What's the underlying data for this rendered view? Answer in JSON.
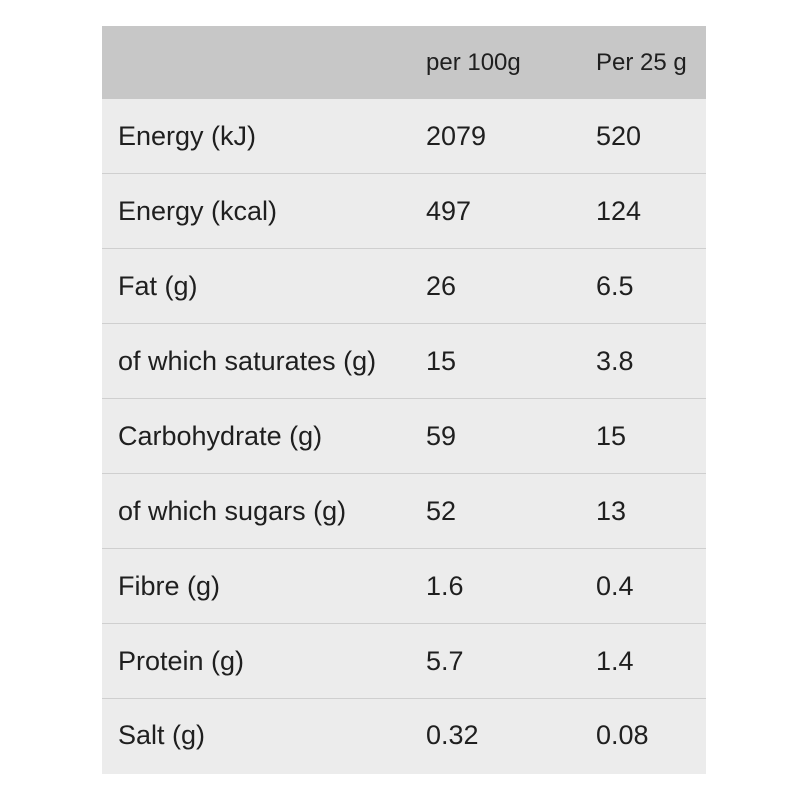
{
  "table": {
    "header": {
      "label": "",
      "per_100g": "per 100g",
      "per_25g": "Per 25 g"
    },
    "rows": [
      {
        "label": "Energy (kJ)",
        "per_100g": "2079",
        "per_25g": "520"
      },
      {
        "label": "Energy (kcal)",
        "per_100g": "497",
        "per_25g": "124"
      },
      {
        "label": "Fat (g)",
        "per_100g": "26",
        "per_25g": "6.5"
      },
      {
        "label": "of which saturates (g)",
        "per_100g": "15",
        "per_25g": "3.8"
      },
      {
        "label": "Carbohydrate (g)",
        "per_100g": "59",
        "per_25g": "15"
      },
      {
        "label": "of which sugars (g)",
        "per_100g": "52",
        "per_25g": "13"
      },
      {
        "label": "Fibre (g)",
        "per_100g": "1.6",
        "per_25g": "0.4"
      },
      {
        "label": "Protein (g)",
        "per_100g": "5.7",
        "per_25g": "1.4"
      },
      {
        "label": "Salt (g)",
        "per_100g": "0.32",
        "per_25g": "0.08"
      }
    ]
  },
  "colors": {
    "header_background": "#c7c7c7",
    "row_background": "#ececec",
    "row_divider": "#cfcfcf",
    "text": "#1f1f1f"
  }
}
